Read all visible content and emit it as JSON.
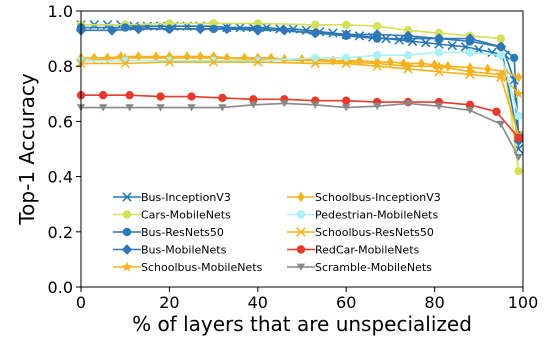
{
  "chart_data": {
    "type": "line",
    "xlabel": "% of layers that are unspecialized",
    "ylabel": "Top-1 Accuracy",
    "xlim": [
      0,
      100
    ],
    "ylim": [
      0.0,
      1.0
    ],
    "x_ticks": [
      0,
      20,
      40,
      60,
      80,
      100
    ],
    "y_ticks": [
      0.0,
      0.2,
      0.4,
      0.6,
      0.8,
      1.0
    ],
    "x_tick_labels": [
      "0",
      "20",
      "40",
      "60",
      "80",
      "100"
    ],
    "y_tick_labels": [
      "0.0",
      "0.2",
      "0.4",
      "0.6",
      "0.8",
      "1.0"
    ],
    "grid": false,
    "legend_position": "bottom-center",
    "series": [
      {
        "name": "Bus-InceptionV3",
        "color": "#1f77b4",
        "marker": "x",
        "x": [
          0,
          3,
          6,
          9,
          12,
          15,
          18,
          21,
          24,
          27,
          30,
          33,
          36,
          39,
          42,
          45,
          48,
          51,
          54,
          57,
          60,
          63,
          66,
          69,
          72,
          75,
          78,
          81,
          84,
          87,
          90,
          93,
          96,
          98,
          99
        ],
        "y": [
          0.95,
          0.95,
          0.95,
          0.95,
          0.945,
          0.945,
          0.945,
          0.945,
          0.945,
          0.945,
          0.945,
          0.94,
          0.94,
          0.94,
          0.94,
          0.935,
          0.935,
          0.93,
          0.925,
          0.92,
          0.915,
          0.91,
          0.905,
          0.9,
          0.895,
          0.89,
          0.885,
          0.88,
          0.875,
          0.87,
          0.86,
          0.85,
          0.84,
          0.75,
          0.5
        ]
      },
      {
        "name": "Cars-MobileNets",
        "color": "#d4e157",
        "marker": "o",
        "x": [
          0,
          10,
          20,
          30,
          40,
          53,
          60,
          67,
          74,
          81,
          88,
          95,
          99
        ],
        "y": [
          0.95,
          0.95,
          0.955,
          0.955,
          0.955,
          0.95,
          0.95,
          0.945,
          0.93,
          0.92,
          0.91,
          0.9,
          0.42
        ]
      },
      {
        "name": "Bus-ResNets50",
        "color": "#2a7ab5",
        "marker": "o",
        "x": [
          0,
          10,
          20,
          30,
          40,
          53,
          60,
          67,
          74,
          81,
          88,
          95,
          98,
          99
        ],
        "y": [
          0.94,
          0.94,
          0.935,
          0.935,
          0.935,
          0.92,
          0.91,
          0.9,
          0.9,
          0.9,
          0.89,
          0.87,
          0.83,
          0.55
        ]
      },
      {
        "name": "Bus-MobileNets",
        "color": "#3176b6",
        "marker": "D",
        "x": [
          0,
          7,
          13,
          20,
          27,
          33,
          40,
          46,
          53,
          60,
          67,
          74,
          81,
          88,
          95,
          99
        ],
        "y": [
          0.93,
          0.93,
          0.935,
          0.935,
          0.935,
          0.935,
          0.93,
          0.93,
          0.92,
          0.915,
          0.915,
          0.91,
          0.9,
          0.9,
          0.87,
          0.53
        ]
      },
      {
        "name": "Schoolbus-MobileNets",
        "color": "#f5b21c",
        "marker": "*",
        "x": [
          0,
          10,
          20,
          30,
          40,
          53,
          60,
          67,
          74,
          81,
          88,
          95,
          99
        ],
        "y": [
          0.82,
          0.83,
          0.83,
          0.83,
          0.825,
          0.82,
          0.815,
          0.81,
          0.8,
          0.8,
          0.78,
          0.77,
          0.7
        ]
      },
      {
        "name": "Schoolbus-InceptionV3",
        "color": "#f5b21c",
        "marker": "d",
        "x": [
          0,
          3,
          6,
          9,
          13,
          17,
          20,
          24,
          27,
          30,
          33,
          37,
          40,
          43,
          46,
          50,
          53,
          57,
          60,
          63,
          67,
          70,
          73,
          77,
          80,
          83,
          88,
          92,
          96,
          99
        ],
        "y": [
          0.83,
          0.83,
          0.83,
          0.835,
          0.835,
          0.835,
          0.835,
          0.835,
          0.835,
          0.835,
          0.83,
          0.83,
          0.83,
          0.83,
          0.825,
          0.825,
          0.825,
          0.82,
          0.82,
          0.82,
          0.815,
          0.815,
          0.81,
          0.81,
          0.805,
          0.8,
          0.795,
          0.79,
          0.78,
          0.76
        ]
      },
      {
        "name": "Pedestrian-MobileNets",
        "color": "#aaf0f5",
        "marker": "o",
        "x": [
          0,
          10,
          20,
          30,
          40,
          53,
          60,
          67,
          74,
          81,
          88,
          95,
          99
        ],
        "y": [
          0.82,
          0.82,
          0.82,
          0.82,
          0.82,
          0.83,
          0.83,
          0.84,
          0.84,
          0.85,
          0.85,
          0.84,
          0.62
        ]
      },
      {
        "name": "Schoolbus-ResNets50",
        "color": "#f5b21c",
        "marker": "x",
        "x": [
          0,
          10,
          20,
          30,
          40,
          53,
          60,
          67,
          74,
          81,
          88,
          95,
          99
        ],
        "y": [
          0.81,
          0.81,
          0.815,
          0.815,
          0.815,
          0.81,
          0.81,
          0.8,
          0.79,
          0.78,
          0.77,
          0.76,
          0.55
        ]
      },
      {
        "name": "RedCar-MobileNets",
        "color": "#e8392c",
        "marker": "o",
        "x": [
          0,
          5,
          11,
          18,
          25,
          32,
          39,
          46,
          53,
          60,
          67,
          74,
          81,
          88,
          94,
          99
        ],
        "y": [
          0.695,
          0.695,
          0.695,
          0.69,
          0.69,
          0.685,
          0.68,
          0.68,
          0.675,
          0.675,
          0.67,
          0.67,
          0.67,
          0.66,
          0.635,
          0.54
        ]
      },
      {
        "name": "Scramble-MobileNets",
        "color": "#888888",
        "marker": "v",
        "x": [
          0,
          5,
          11,
          18,
          25,
          32,
          39,
          46,
          53,
          60,
          67,
          74,
          81,
          88,
          95,
          99
        ],
        "y": [
          0.65,
          0.65,
          0.65,
          0.65,
          0.65,
          0.65,
          0.66,
          0.665,
          0.66,
          0.65,
          0.655,
          0.665,
          0.655,
          0.64,
          0.59,
          0.47
        ]
      }
    ],
    "legend_order": [
      "Bus-InceptionV3",
      "Schoolbus-InceptionV3",
      "Cars-MobileNets",
      "Pedestrian-MobileNets",
      "Bus-ResNets50",
      "Schoolbus-ResNets50",
      "Bus-MobileNets",
      "RedCar-MobileNets",
      "Schoolbus-MobileNets",
      "Scramble-MobileNets"
    ]
  }
}
